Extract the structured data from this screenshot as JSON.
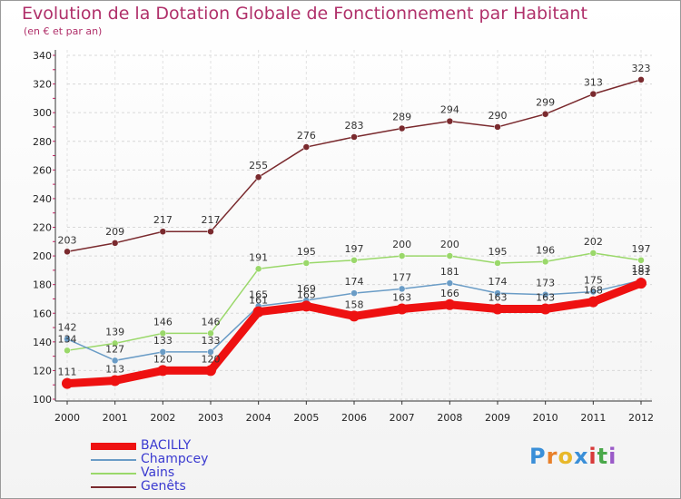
{
  "chart_data": {
    "type": "line",
    "title": "Evolution de la Dotation Globale de Fonctionnement par Habitant",
    "subtitle": "(en € et par an)",
    "xlabel": "",
    "ylabel": "",
    "x": [
      "2000",
      "2001",
      "2002",
      "2003",
      "2004",
      "2005",
      "2006",
      "2007",
      "2008",
      "2009",
      "2010",
      "2011",
      "2012"
    ],
    "ylim": [
      100,
      340
    ],
    "yticks": [
      100,
      120,
      140,
      160,
      180,
      200,
      220,
      240,
      260,
      280,
      300,
      320,
      340
    ],
    "grid": "horizontal",
    "legend": "bottom-left",
    "series": [
      {
        "name": "BACILLY",
        "color": "#ee1111",
        "values": [
          111,
          113,
          120,
          120,
          161,
          165,
          158,
          163,
          166,
          163,
          163,
          168,
          181
        ]
      },
      {
        "name": "Champcey",
        "color": "#6a9cc6",
        "values": [
          142,
          127,
          133,
          133,
          165,
          169,
          174,
          177,
          181,
          174,
          173,
          175,
          183
        ]
      },
      {
        "name": "Vains",
        "color": "#9ad86a",
        "values": [
          134,
          139,
          146,
          146,
          191,
          195,
          197,
          200,
          200,
          195,
          196,
          202,
          197
        ]
      },
      {
        "name": "Genêts",
        "color": "#7a2a2e",
        "values": [
          203,
          209,
          217,
          217,
          255,
          276,
          283,
          289,
          294,
          290,
          299,
          313,
          323
        ]
      }
    ]
  },
  "logo": {
    "text": "Proxiti",
    "letters": [
      "P",
      "r",
      "o",
      "x",
      "i",
      "t",
      "i"
    ],
    "colors": [
      "#3a8fd8",
      "#e8802a",
      "#e8b82a",
      "#3a8fd8",
      "#d83a3a",
      "#4aa84a",
      "#9a5ac8"
    ]
  }
}
